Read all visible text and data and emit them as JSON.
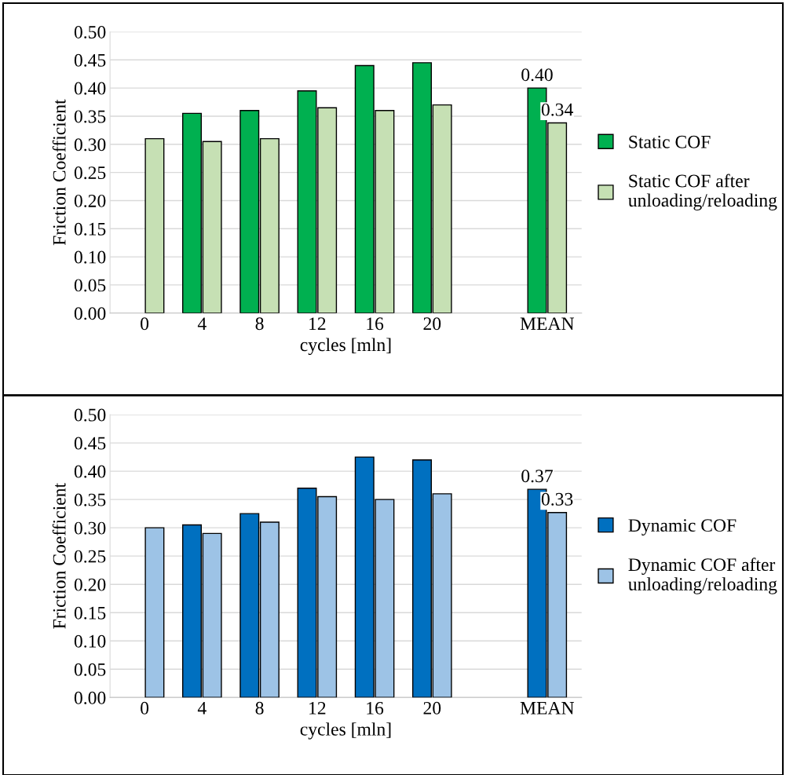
{
  "chart_data": [
    {
      "type": "bar",
      "categories": [
        "0",
        "4",
        "8",
        "12",
        "16",
        "20",
        null,
        "MEAN"
      ],
      "xlabel": "cycles [mln]",
      "ylabel": "Friction Coefficient",
      "ylim": [
        0,
        0.5
      ],
      "yticks": [
        {
          "value": 0,
          "label": "0.00"
        },
        {
          "value": 0.05,
          "label": "0.05"
        },
        {
          "value": 0.1,
          "label": "0.10"
        },
        {
          "value": 0.15,
          "label": "0.15"
        },
        {
          "value": 0.2,
          "label": "0.20"
        },
        {
          "value": 0.25,
          "label": "0.25"
        },
        {
          "value": 0.3,
          "label": "0.30"
        },
        {
          "value": 0.35,
          "label": "0.35"
        },
        {
          "value": 0.4,
          "label": "0.40"
        },
        {
          "value": 0.45,
          "label": "0.45"
        },
        {
          "value": 0.5,
          "label": "0.50"
        }
      ],
      "grid": "y",
      "legend": "right",
      "series": [
        {
          "name": "Static COF",
          "color": "#00b050",
          "values": [
            null,
            0.355,
            0.36,
            0.395,
            0.44,
            0.445,
            null,
            0.4
          ],
          "value_labels": [
            null,
            null,
            null,
            null,
            null,
            null,
            null,
            "0.40"
          ]
        },
        {
          "name": "Static COF after\nunloading/reloading",
          "color": "#c6e0b4",
          "values": [
            0.31,
            0.305,
            0.31,
            0.365,
            0.36,
            0.37,
            null,
            0.338
          ],
          "value_labels": [
            null,
            null,
            null,
            null,
            null,
            null,
            null,
            "0.34"
          ]
        }
      ]
    },
    {
      "type": "bar",
      "categories": [
        "0",
        "4",
        "8",
        "12",
        "16",
        "20",
        null,
        "MEAN"
      ],
      "xlabel": "cycles [mln]",
      "ylabel": "Friction Coefficient",
      "ylim": [
        0,
        0.5
      ],
      "yticks": [
        {
          "value": 0,
          "label": "0.00"
        },
        {
          "value": 0.05,
          "label": "0.05"
        },
        {
          "value": 0.1,
          "label": "0.10"
        },
        {
          "value": 0.15,
          "label": "0.15"
        },
        {
          "value": 0.2,
          "label": "0.20"
        },
        {
          "value": 0.25,
          "label": "0.25"
        },
        {
          "value": 0.3,
          "label": "0.30"
        },
        {
          "value": 0.35,
          "label": "0.35"
        },
        {
          "value": 0.4,
          "label": "0.40"
        },
        {
          "value": 0.45,
          "label": "0.45"
        },
        {
          "value": 0.5,
          "label": "0.50"
        }
      ],
      "grid": "y",
      "legend": "right",
      "series": [
        {
          "name": "Dynamic COF",
          "color": "#0070c0",
          "values": [
            null,
            0.305,
            0.325,
            0.37,
            0.425,
            0.42,
            null,
            0.368
          ],
          "value_labels": [
            null,
            null,
            null,
            null,
            null,
            null,
            null,
            "0.37"
          ]
        },
        {
          "name": "Dynamic COF after\nunloading/reloading",
          "color": "#9dc3e6",
          "values": [
            0.3,
            0.29,
            0.31,
            0.355,
            0.35,
            0.36,
            null,
            0.327
          ],
          "value_labels": [
            null,
            null,
            null,
            null,
            null,
            null,
            null,
            "0.33"
          ]
        }
      ]
    }
  ]
}
